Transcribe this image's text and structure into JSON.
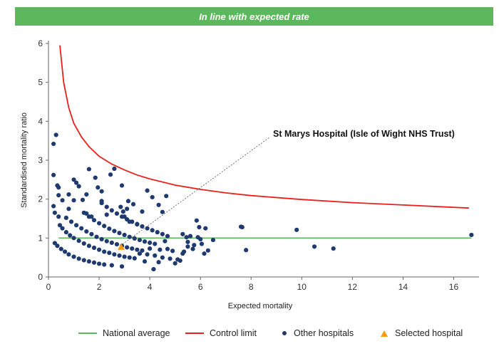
{
  "banner": {
    "text": "In line with expected rate",
    "color": "#5cb85c"
  },
  "colors": {
    "average": "#5cb85c",
    "control": "#e8211c",
    "hospital": "#1f3a6e",
    "selected": "#f39c12",
    "axis": "#666666"
  },
  "chart_data": {
    "type": "scatter",
    "xlabel": "Expected mortality",
    "ylabel": "Standardised mortality ratio",
    "xlim": [
      0,
      17
    ],
    "ylim": [
      0,
      6
    ],
    "x_ticks": [
      0,
      2,
      4,
      6,
      8,
      10,
      12,
      14,
      16
    ],
    "y_ticks": [
      0,
      1,
      2,
      3,
      4,
      5,
      6
    ],
    "grid": false,
    "legend_position": "bottom",
    "national_average": {
      "name": "National average",
      "y": 1,
      "x_range": [
        0.4,
        16.7
      ]
    },
    "control_limit": {
      "name": "Control limit",
      "points": [
        [
          0.45,
          5.95
        ],
        [
          0.6,
          5.0
        ],
        [
          0.8,
          4.35
        ],
        [
          1.0,
          3.95
        ],
        [
          1.3,
          3.6
        ],
        [
          1.6,
          3.35
        ],
        [
          2.0,
          3.1
        ],
        [
          2.5,
          2.9
        ],
        [
          3.0,
          2.75
        ],
        [
          3.5,
          2.62
        ],
        [
          4.0,
          2.52
        ],
        [
          5.0,
          2.36
        ],
        [
          6.0,
          2.25
        ],
        [
          7.0,
          2.16
        ],
        [
          8.0,
          2.09
        ],
        [
          10.0,
          1.99
        ],
        [
          12.0,
          1.91
        ],
        [
          14.0,
          1.85
        ],
        [
          16.6,
          1.77
        ]
      ]
    },
    "series": [
      {
        "name": "Other hospitals",
        "points": [
          [
            0.3,
            3.65
          ],
          [
            0.2,
            3.42
          ],
          [
            0.2,
            2.62
          ],
          [
            0.35,
            2.35
          ],
          [
            0.4,
            2.3
          ],
          [
            0.4,
            2.1
          ],
          [
            0.55,
            1.97
          ],
          [
            0.2,
            1.82
          ],
          [
            0.25,
            1.65
          ],
          [
            0.4,
            1.55
          ],
          [
            0.8,
            2.12
          ],
          [
            1.0,
            2.5
          ],
          [
            1.1,
            2.42
          ],
          [
            1.2,
            2.33
          ],
          [
            1.5,
            2.12
          ],
          [
            1.0,
            1.97
          ],
          [
            1.35,
            1.98
          ],
          [
            0.8,
            1.75
          ],
          [
            1.6,
            2.77
          ],
          [
            1.85,
            2.55
          ],
          [
            1.95,
            2.3
          ],
          [
            2.1,
            2.2
          ],
          [
            2.1,
            1.95
          ],
          [
            2.45,
            2.63
          ],
          [
            2.6,
            2.78
          ],
          [
            2.9,
            2.35
          ],
          [
            3.15,
            1.95
          ],
          [
            3.1,
            1.75
          ],
          [
            3.35,
            1.87
          ],
          [
            3.7,
            1.68
          ],
          [
            4.1,
            2.05
          ],
          [
            4.35,
            1.85
          ],
          [
            4.5,
            1.67
          ],
          [
            4.65,
            2.08
          ],
          [
            2.85,
            1.8
          ],
          [
            2.95,
            1.68
          ],
          [
            3.0,
            1.55
          ],
          [
            3.2,
            1.42
          ],
          [
            3.5,
            1.35
          ],
          [
            3.9,
            2.22
          ],
          [
            1.5,
            1.63
          ],
          [
            1.7,
            1.55
          ],
          [
            2.3,
            1.6
          ],
          [
            0.45,
            1.33
          ],
          [
            0.55,
            1.25
          ],
          [
            0.7,
            1.15
          ],
          [
            0.85,
            1.07
          ],
          [
            1.0,
            1.0
          ],
          [
            1.2,
            0.93
          ],
          [
            1.4,
            0.86
          ],
          [
            1.6,
            0.8
          ],
          [
            1.8,
            0.75
          ],
          [
            2.0,
            0.7
          ],
          [
            2.2,
            0.65
          ],
          [
            2.4,
            0.62
          ],
          [
            2.6,
            0.58
          ],
          [
            2.8,
            0.55
          ],
          [
            3.0,
            0.52
          ],
          [
            3.2,
            0.5
          ],
          [
            3.4,
            0.48
          ],
          [
            0.25,
            0.87
          ],
          [
            0.35,
            0.8
          ],
          [
            0.5,
            0.72
          ],
          [
            0.65,
            0.65
          ],
          [
            0.8,
            0.58
          ],
          [
            1.0,
            0.52
          ],
          [
            1.2,
            0.47
          ],
          [
            1.4,
            0.43
          ],
          [
            1.6,
            0.4
          ],
          [
            1.8,
            0.37
          ],
          [
            2.0,
            0.34
          ],
          [
            2.2,
            0.32
          ],
          [
            2.5,
            0.3
          ],
          [
            2.9,
            0.27
          ],
          [
            0.7,
            1.52
          ],
          [
            0.9,
            1.42
          ],
          [
            1.1,
            1.33
          ],
          [
            1.3,
            1.25
          ],
          [
            1.5,
            1.17
          ],
          [
            1.7,
            1.1
          ],
          [
            1.9,
            1.03
          ],
          [
            2.1,
            0.97
          ],
          [
            2.3,
            0.92
          ],
          [
            2.5,
            0.88
          ],
          [
            2.7,
            0.84
          ],
          [
            2.9,
            0.8
          ],
          [
            3.1,
            0.76
          ],
          [
            3.3,
            0.73
          ],
          [
            3.5,
            0.7
          ],
          [
            3.7,
            0.68
          ],
          [
            1.4,
            1.65
          ],
          [
            1.6,
            1.55
          ],
          [
            1.8,
            1.46
          ],
          [
            2.0,
            1.38
          ],
          [
            2.2,
            1.31
          ],
          [
            2.4,
            1.24
          ],
          [
            2.6,
            1.18
          ],
          [
            2.8,
            1.13
          ],
          [
            3.0,
            1.08
          ],
          [
            3.2,
            1.03
          ],
          [
            3.4,
            0.99
          ],
          [
            3.6,
            0.95
          ],
          [
            3.8,
            0.91
          ],
          [
            4.0,
            0.88
          ],
          [
            4.2,
            0.85
          ],
          [
            2.1,
            1.9
          ],
          [
            2.3,
            1.8
          ],
          [
            2.5,
            1.71
          ],
          [
            2.7,
            1.63
          ],
          [
            2.9,
            1.55
          ],
          [
            3.1,
            1.48
          ],
          [
            3.3,
            1.42
          ],
          [
            3.5,
            1.36
          ],
          [
            3.7,
            1.3
          ],
          [
            3.9,
            1.25
          ],
          [
            4.1,
            1.2
          ],
          [
            4.3,
            1.15
          ],
          [
            4.5,
            1.1
          ],
          [
            4.7,
            1.05
          ],
          [
            3.6,
            0.6
          ],
          [
            3.9,
            0.58
          ],
          [
            4.2,
            0.55
          ],
          [
            4.5,
            0.5
          ],
          [
            4.8,
            0.47
          ],
          [
            5.1,
            0.45
          ],
          [
            4.0,
            0.73
          ],
          [
            4.4,
            0.7
          ],
          [
            4.9,
            0.67
          ],
          [
            5.3,
            0.6
          ],
          [
            4.6,
            0.92
          ],
          [
            4.7,
            0.72
          ],
          [
            4.15,
            0.2
          ],
          [
            4.35,
            0.38
          ],
          [
            3.8,
            0.4
          ],
          [
            5.0,
            0.35
          ],
          [
            5.2,
            0.42
          ],
          [
            5.3,
            1.1
          ],
          [
            5.45,
            1.02
          ],
          [
            5.5,
            0.9
          ],
          [
            5.6,
            1.05
          ],
          [
            5.75,
            0.82
          ],
          [
            5.85,
            1.45
          ],
          [
            5.9,
            1.02
          ],
          [
            5.95,
            1.28
          ],
          [
            6.0,
            0.97
          ],
          [
            6.2,
            1.25
          ],
          [
            6.05,
            0.85
          ],
          [
            6.15,
            0.6
          ],
          [
            6.3,
            0.68
          ],
          [
            6.5,
            0.95
          ],
          [
            5.5,
            0.78
          ],
          [
            5.7,
            0.72
          ],
          [
            5.35,
            0.65
          ],
          [
            7.6,
            1.29
          ],
          [
            7.65,
            1.28
          ],
          [
            7.8,
            0.69
          ],
          [
            9.8,
            1.21
          ],
          [
            10.5,
            0.78
          ],
          [
            11.25,
            0.73
          ],
          [
            16.7,
            1.08
          ]
        ]
      },
      {
        "name": "Selected hospital",
        "points": [
          [
            2.87,
            0.77
          ]
        ]
      }
    ],
    "annotations": [
      {
        "text": "St Marys Hospital (Isle of Wight NHS Trust)",
        "target": [
          2.87,
          0.77
        ]
      }
    ]
  }
}
